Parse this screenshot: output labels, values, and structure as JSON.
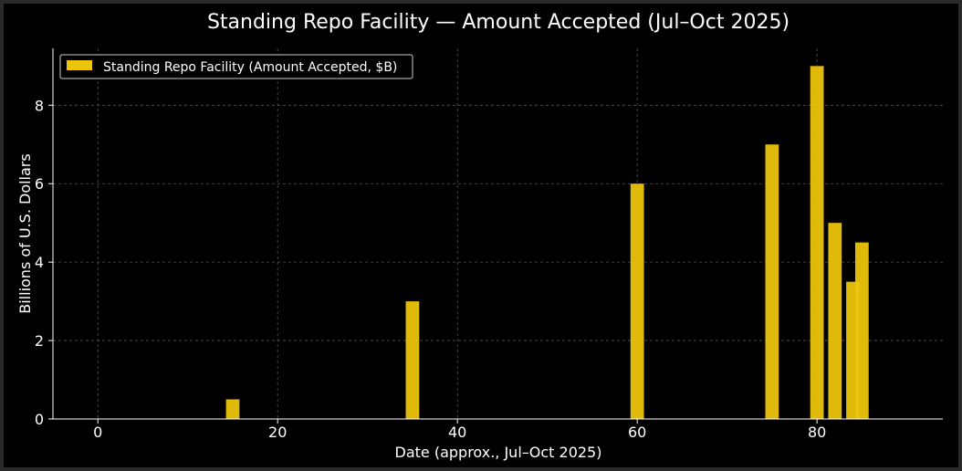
{
  "chart_data": {
    "type": "bar",
    "title": "Standing Repo Facility — Amount Accepted (Jul–Oct 2025)",
    "xlabel": "Date (approx., Jul–Oct 2025)",
    "ylabel": "Billions of U.S. Dollars",
    "xlim": [
      -5,
      94
    ],
    "ylim": [
      0,
      9.45
    ],
    "xticks": [
      0,
      20,
      40,
      60,
      80
    ],
    "yticks": [
      0,
      2,
      4,
      6,
      8
    ],
    "grid": true,
    "legend_position": "top-left",
    "series": [
      {
        "name": "Standing Repo Facility (Amount Accepted, $B)",
        "color": "#ecc40c",
        "x": [
          15,
          35,
          60,
          75,
          80,
          82,
          84,
          85
        ],
        "values": [
          0.5,
          3.0,
          6.0,
          7.0,
          9.0,
          5.0,
          3.5,
          4.5
        ]
      }
    ]
  }
}
